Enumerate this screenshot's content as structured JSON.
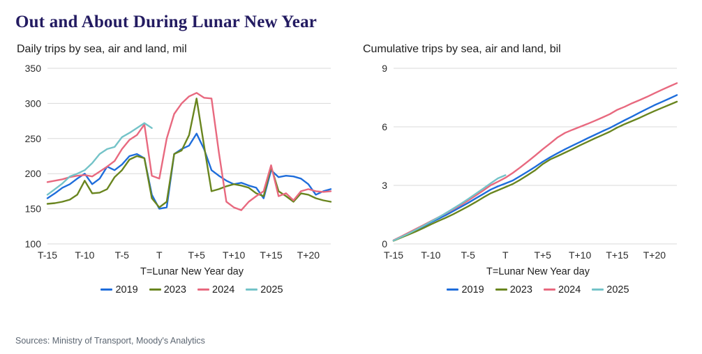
{
  "page": {
    "title": "Out and About During Lunar New Year",
    "footer": "Sources: Ministry of Transport, Moody's Analytics"
  },
  "colors": {
    "title_accent": "#231b61",
    "grid": "#d9d9d9"
  },
  "chart_data": [
    {
      "type": "line",
      "title": "Daily trips by sea, air and land, mil",
      "xlabel": "T=Lunar New Year day",
      "legend_position": "bottom",
      "grid": "horizontal",
      "ylim": [
        100,
        350
      ],
      "yticks": [
        100,
        150,
        200,
        250,
        300,
        350
      ],
      "xlim": [
        -15,
        23
      ],
      "xticks": [
        {
          "v": -15,
          "label": "T-15"
        },
        {
          "v": -10,
          "label": "T-10"
        },
        {
          "v": -5,
          "label": "T-5"
        },
        {
          "v": 0,
          "label": "T"
        },
        {
          "v": 5,
          "label": "T+5"
        },
        {
          "v": 10,
          "label": "T+10"
        },
        {
          "v": 15,
          "label": "T+15"
        },
        {
          "v": 20,
          "label": "T+20"
        }
      ],
      "x": [
        -15,
        -14,
        -13,
        -12,
        -11,
        -10,
        -9,
        -8,
        -7,
        -6,
        -5,
        -4,
        -3,
        -2,
        -1,
        0,
        1,
        2,
        3,
        4,
        5,
        6,
        7,
        8,
        9,
        10,
        11,
        12,
        13,
        14,
        15,
        16,
        17,
        18,
        19,
        20,
        21,
        22,
        23
      ],
      "series": [
        {
          "name": "2019",
          "color": "#1e6ddb",
          "values": [
            165,
            172,
            180,
            185,
            193,
            200,
            185,
            193,
            210,
            205,
            213,
            225,
            228,
            222,
            170,
            150,
            152,
            228,
            235,
            240,
            257,
            235,
            205,
            197,
            190,
            185,
            187,
            183,
            180,
            165,
            205,
            195,
            197,
            196,
            193,
            185,
            170,
            175,
            178
          ]
        },
        {
          "name": "2023",
          "color": "#69851f",
          "values": [
            157,
            158,
            160,
            163,
            170,
            190,
            172,
            173,
            178,
            195,
            205,
            220,
            225,
            222,
            165,
            152,
            160,
            228,
            233,
            255,
            307,
            240,
            175,
            178,
            182,
            185,
            183,
            180,
            172,
            168,
            210,
            175,
            168,
            160,
            172,
            170,
            165,
            162,
            160
          ]
        },
        {
          "name": "2024",
          "color": "#e8697f",
          "values": [
            188,
            190,
            192,
            195,
            197,
            198,
            196,
            203,
            210,
            218,
            235,
            248,
            255,
            270,
            197,
            193,
            250,
            285,
            300,
            310,
            315,
            308,
            307,
            230,
            160,
            152,
            148,
            160,
            168,
            175,
            212,
            168,
            172,
            162,
            175,
            178,
            175,
            174,
            175
          ]
        },
        {
          "name": "2025",
          "color": "#74c3c8",
          "values": [
            170,
            178,
            186,
            196,
            200,
            205,
            215,
            228,
            235,
            238,
            252,
            258,
            265,
            272,
            265
          ]
        }
      ]
    },
    {
      "type": "line",
      "title": "Cumulative trips by sea, air and land, bil",
      "xlabel": "T=Lunar New Year day",
      "legend_position": "bottom",
      "grid": "horizontal",
      "ylim": [
        0,
        9
      ],
      "yticks": [
        0,
        3,
        6,
        9
      ],
      "xlim": [
        -15,
        23
      ],
      "xticks": [
        {
          "v": -15,
          "label": "T-15"
        },
        {
          "v": -10,
          "label": "T-10"
        },
        {
          "v": -5,
          "label": "T-5"
        },
        {
          "v": 0,
          "label": "T"
        },
        {
          "v": 5,
          "label": "T+5"
        },
        {
          "v": 10,
          "label": "T+10"
        },
        {
          "v": 15,
          "label": "T+15"
        },
        {
          "v": 20,
          "label": "T+20"
        }
      ],
      "x": [
        -15,
        -14,
        -13,
        -12,
        -11,
        -10,
        -9,
        -8,
        -7,
        -6,
        -5,
        -4,
        -3,
        -2,
        -1,
        0,
        1,
        2,
        3,
        4,
        5,
        6,
        7,
        8,
        9,
        10,
        11,
        12,
        13,
        14,
        15,
        16,
        17,
        18,
        19,
        20,
        21,
        22,
        23
      ],
      "series": [
        {
          "name": "2019",
          "color": "#1e6ddb",
          "values": [
            0.17,
            0.34,
            0.52,
            0.7,
            0.9,
            1.1,
            1.28,
            1.47,
            1.68,
            1.89,
            2.1,
            2.33,
            2.55,
            2.78,
            2.95,
            3.1,
            3.25,
            3.48,
            3.71,
            3.95,
            4.21,
            4.44,
            4.65,
            4.85,
            5.04,
            5.22,
            5.41,
            5.59,
            5.77,
            5.94,
            6.14,
            6.34,
            6.53,
            6.73,
            6.92,
            7.11,
            7.28,
            7.45,
            7.63
          ]
        },
        {
          "name": "2023",
          "color": "#69851f",
          "values": [
            0.16,
            0.32,
            0.48,
            0.64,
            0.81,
            1.0,
            1.17,
            1.34,
            1.52,
            1.72,
            1.92,
            2.14,
            2.37,
            2.59,
            2.75,
            2.91,
            3.07,
            3.29,
            3.53,
            3.78,
            4.09,
            4.33,
            4.5,
            4.68,
            4.86,
            5.05,
            5.23,
            5.41,
            5.58,
            5.75,
            5.96,
            6.14,
            6.3,
            6.46,
            6.64,
            6.81,
            6.97,
            7.13,
            7.29
          ]
        },
        {
          "name": "2024",
          "color": "#e8697f",
          "values": [
            0.19,
            0.38,
            0.57,
            0.77,
            0.96,
            1.16,
            1.36,
            1.56,
            1.77,
            1.99,
            2.22,
            2.47,
            2.73,
            3.0,
            3.19,
            3.39,
            3.64,
            3.92,
            4.22,
            4.53,
            4.85,
            5.15,
            5.46,
            5.69,
            5.85,
            6.0,
            6.15,
            6.31,
            6.48,
            6.65,
            6.87,
            7.03,
            7.21,
            7.37,
            7.54,
            7.72,
            7.9,
            8.07,
            8.24
          ]
        },
        {
          "name": "2025",
          "color": "#74c3c8",
          "values": [
            0.17,
            0.35,
            0.53,
            0.73,
            0.93,
            1.14,
            1.35,
            1.58,
            1.81,
            2.05,
            2.3,
            2.56,
            2.83,
            3.1,
            3.36,
            3.52
          ]
        }
      ]
    }
  ]
}
